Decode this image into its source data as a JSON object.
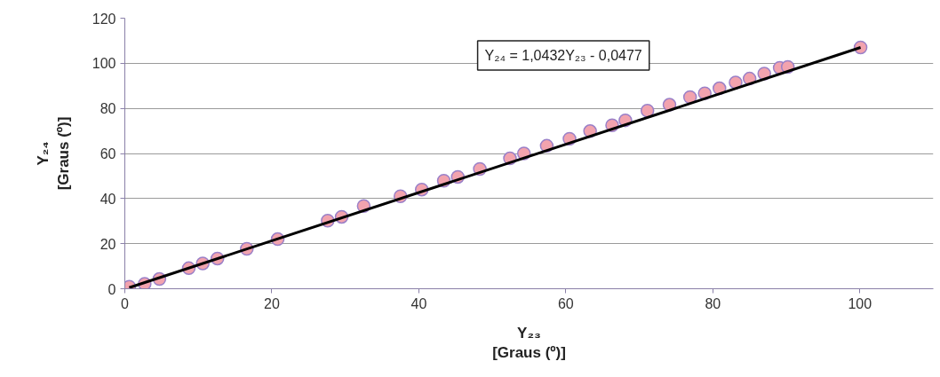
{
  "chart_data": {
    "type": "scatter",
    "xlabel": "Y₂₃\n[Graus (º)]",
    "ylabel": "Y₂₄\n[Graus (º)]",
    "annotations": [
      "Y₂₄ = 1,0432Y₂₃ - 0,0477"
    ],
    "xlim": [
      0,
      110
    ],
    "xticks": [
      0,
      20,
      40,
      60,
      80,
      100
    ],
    "ylim": [
      0,
      120
    ],
    "yticks": [
      0,
      20,
      40,
      60,
      80,
      100,
      120
    ],
    "grid": "y",
    "marker": "circle",
    "series": [
      {
        "color": "#f2a3ae",
        "x": [
          0.6,
          2.7,
          4.7,
          8.7,
          10.6,
          12.6,
          16.6,
          20.8,
          27.6,
          29.5,
          32.5,
          37.5,
          40.4,
          43.4,
          45.3,
          48.3,
          52.4,
          54.3,
          57.4,
          60.5,
          63.3,
          66.3,
          68.1,
          71.1,
          74.1,
          76.9,
          78.9,
          80.9,
          83.1,
          85,
          87,
          89.1,
          90.2,
          100.1
        ],
        "values": [
          0.9,
          2.2,
          4.3,
          9.1,
          11.2,
          13.4,
          17.7,
          22,
          30.2,
          31.9,
          36.7,
          41,
          44,
          47.9,
          49.6,
          53.1,
          57.8,
          60,
          63.4,
          66.5,
          69.9,
          72.5,
          74.7,
          79,
          81.6,
          85,
          86.7,
          88.9,
          91.5,
          93.2,
          95.4,
          98,
          98.4,
          107
        ]
      },
      {
        "type": "line",
        "marker": "none",
        "color": "#000000",
        "x": [
          0.6,
          100.1
        ],
        "values": [
          0.5,
          107
        ]
      }
    ]
  }
}
